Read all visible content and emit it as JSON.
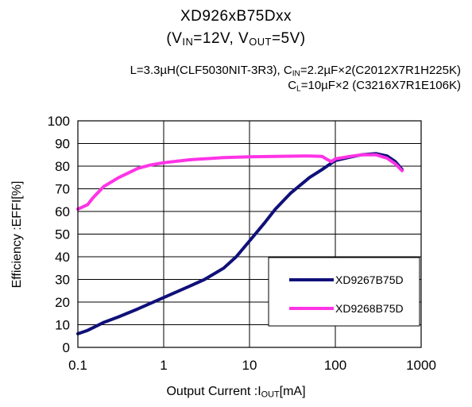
{
  "header": {
    "title_line1": "XD926xB75Dxx",
    "title_line2": {
      "open": "(V",
      "vin_sub": "IN",
      "vin_val": "=12V, V",
      "vout_sub": "OUT",
      "vout_val": "=5V)"
    },
    "conditions_line1": {
      "a": "L=3.3µH(CLF5030NIT-3R3), C",
      "sub": "IN",
      "b": "=2.2µF×2(C2012X7R1H225K)"
    },
    "conditions_line2": {
      "a": "C",
      "sub": "L",
      "b": "=10µF×2 (C3216X7R1E106K)"
    }
  },
  "axes": {
    "ylabel": "Efficiency :EFFI[%]",
    "xlabel": {
      "a": "Output  Current :I",
      "sub": "OUT",
      "b": "[mA]"
    }
  },
  "chart_data": {
    "type": "line",
    "x_scale": "log",
    "xlim": [
      0.1,
      1000
    ],
    "ylim": [
      0,
      100
    ],
    "x_ticks": [
      0.1,
      1,
      10,
      100,
      1000
    ],
    "x_tick_labels": [
      "0.1",
      "1",
      "10",
      "100",
      "1000"
    ],
    "y_ticks": [
      0,
      10,
      20,
      30,
      40,
      50,
      60,
      70,
      80,
      90,
      100
    ],
    "y_tick_labels": [
      "0",
      "10",
      "20",
      "30",
      "40",
      "50",
      "60",
      "70",
      "80",
      "90",
      "100"
    ],
    "grid": true,
    "legend_position": "bottom-right",
    "series": [
      {
        "name": "XD9267B75D",
        "color": "#10107a",
        "points": [
          [
            0.1,
            6
          ],
          [
            0.13,
            7.5
          ],
          [
            0.2,
            11
          ],
          [
            0.3,
            13.5
          ],
          [
            0.5,
            17
          ],
          [
            1,
            22
          ],
          [
            2,
            27
          ],
          [
            3,
            30
          ],
          [
            5,
            35
          ],
          [
            7,
            40
          ],
          [
            10,
            47
          ],
          [
            15,
            55
          ],
          [
            20,
            61
          ],
          [
            30,
            68
          ],
          [
            50,
            75
          ],
          [
            70,
            78.5
          ],
          [
            80,
            80
          ],
          [
            100,
            82.5
          ],
          [
            150,
            84
          ],
          [
            200,
            85
          ],
          [
            300,
            85.5
          ],
          [
            400,
            84.5
          ],
          [
            500,
            82
          ],
          [
            600,
            78.5
          ]
        ]
      },
      {
        "name": "XD9268B75D",
        "color": "#ff33e6",
        "points": [
          [
            0.1,
            61
          ],
          [
            0.13,
            63
          ],
          [
            0.15,
            66
          ],
          [
            0.2,
            71
          ],
          [
            0.3,
            75
          ],
          [
            0.5,
            79
          ],
          [
            0.7,
            80.5
          ],
          [
            1,
            81.5
          ],
          [
            2,
            82.8
          ],
          [
            5,
            83.8
          ],
          [
            10,
            84.1
          ],
          [
            20,
            84.3
          ],
          [
            50,
            84.5
          ],
          [
            70,
            84.3
          ],
          [
            80,
            83
          ],
          [
            90,
            82
          ],
          [
            100,
            83.2
          ],
          [
            150,
            84.3
          ],
          [
            200,
            85
          ],
          [
            300,
            85
          ],
          [
            400,
            83.5
          ],
          [
            500,
            81
          ],
          [
            600,
            78
          ]
        ]
      }
    ]
  }
}
